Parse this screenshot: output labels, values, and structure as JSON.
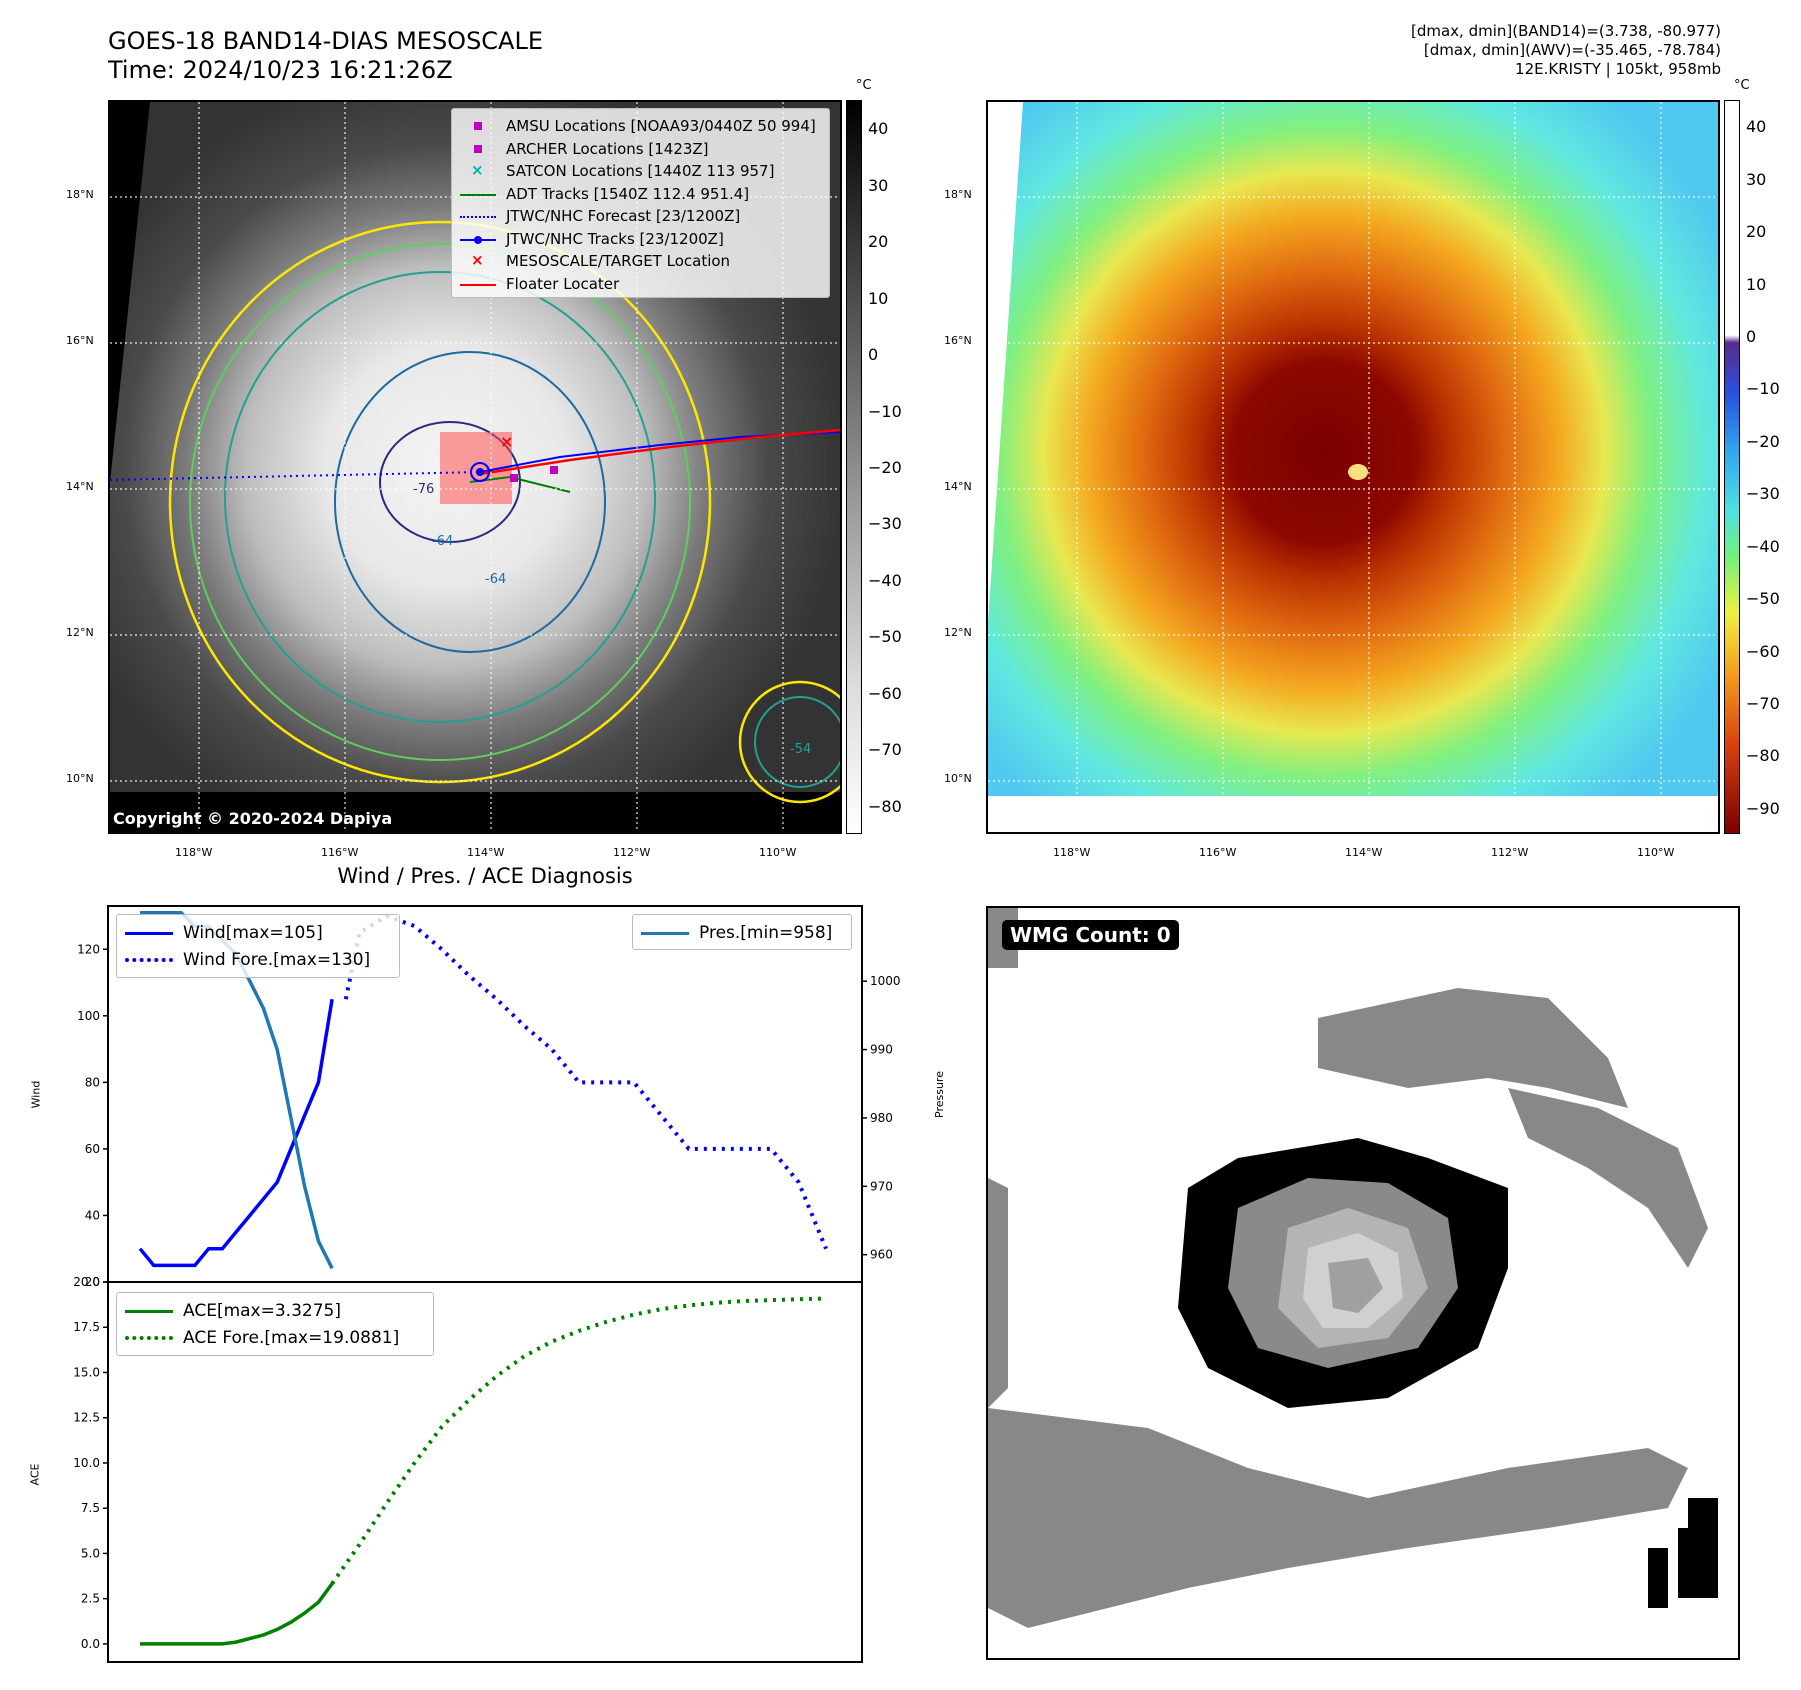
{
  "header": {
    "title_line1": "GOES-18 BAND14-DIAS MESOSCALE",
    "title_line2": "Time: 2024/10/23 16:21:26Z",
    "info_line1": "[dmax, dmin](BAND14)=(3.738, -80.977)",
    "info_line2": "[dmax, dmin](AWV)=(-35.465, -78.784)",
    "info_line3": "12E.KRISTY | 105kt, 958mb"
  },
  "map_ir": {
    "lat_labels": [
      "18°N",
      "16°N",
      "14°N",
      "12°N",
      "10°N"
    ],
    "lon_labels": [
      "118°W",
      "116°W",
      "114°W",
      "112°W",
      "110°W"
    ],
    "contour_labels": [
      "-76",
      "-64",
      "-64",
      "-54"
    ],
    "copyright": "Copyright © 2020-2024 Dapiya",
    "colorbar_unit": "°C",
    "colorbar_ticks": [
      "40",
      "30",
      "20",
      "10",
      "0",
      "−10",
      "−20",
      "−30",
      "−40",
      "−50",
      "−60",
      "−70",
      "−80"
    ],
    "legend": [
      {
        "label": "AMSU Locations [NOAA93/0440Z 50 994]",
        "key": "square",
        "color": "#c000c0"
      },
      {
        "label": "ARCHER Locations [1423Z]",
        "key": "square",
        "color": "#c000c0"
      },
      {
        "label": "SATCON Locations [1440Z 113 957]",
        "key": "x",
        "color": "#00b0b0"
      },
      {
        "label": "ADT Tracks [1540Z 112.4 951.4]",
        "key": "line",
        "color": "#008000"
      },
      {
        "label": "JTWC/NHC Forecast [23/1200Z]",
        "key": "dotted",
        "color": "#0000ff"
      },
      {
        "label": "JTWC/NHC Tracks [23/1200Z]",
        "key": "line-dot",
        "color": "#0000ff"
      },
      {
        "label": "MESOSCALE/TARGET Location",
        "key": "x",
        "color": "#ff0000"
      },
      {
        "label": "Floater Locater",
        "key": "line",
        "color": "#ff0000"
      }
    ]
  },
  "map_awv": {
    "lat_labels": [
      "18°N",
      "16°N",
      "14°N",
      "12°N",
      "10°N"
    ],
    "lon_labels": [
      "118°W",
      "116°W",
      "114°W",
      "112°W",
      "110°W"
    ],
    "colorbar_unit": "°C",
    "colorbar_ticks": [
      "40",
      "30",
      "20",
      "10",
      "0",
      "−10",
      "−20",
      "−30",
      "−40",
      "−50",
      "−60",
      "−70",
      "−80",
      "−90"
    ]
  },
  "diagnosis": {
    "title": "Wind / Pres. / ACE Diagnosis",
    "wind_ylabel": "Wind",
    "pres_ylabel": "Pressure",
    "ace_ylabel": "ACE",
    "wind_legend": [
      "Wind[max=105]",
      "Wind Fore.[max=130]"
    ],
    "pres_legend": [
      "Pres.[min=958]"
    ],
    "ace_legend": [
      "ACE[max=3.3275]",
      "ACE Fore.[max=19.0881]"
    ]
  },
  "wmg": {
    "badge": "WMG Count: 0"
  },
  "chart_data": [
    {
      "type": "line",
      "name": "wind",
      "x": [
        0,
        1,
        2,
        3,
        4,
        5,
        6,
        7,
        8,
        9,
        10,
        11,
        12,
        13,
        14,
        15
      ],
      "series": [
        {
          "name": "Wind[max=105]",
          "x": [
            0,
            1,
            2,
            3,
            4,
            5,
            6,
            7,
            8,
            9,
            10,
            11,
            12,
            13,
            14,
            15
          ],
          "values": [
            30,
            25,
            25,
            25,
            25,
            30,
            30,
            35,
            40,
            45,
            50,
            60,
            70,
            80,
            105,
            null
          ]
        },
        {
          "name": "Wind Fore.[max=130]",
          "x": [
            15,
            16,
            18,
            20,
            22,
            24,
            26,
            28,
            30,
            32,
            34,
            36,
            38,
            40,
            42,
            44,
            46,
            48,
            50
          ],
          "values": [
            105,
            125,
            130,
            127,
            120,
            112,
            105,
            97,
            90,
            80,
            80,
            80,
            70,
            60,
            60,
            60,
            60,
            50,
            30
          ]
        }
      ],
      "ylim": [
        20,
        133
      ],
      "yticks": [
        20,
        40,
        60,
        80,
        100,
        120
      ],
      "ylabel": "Wind"
    },
    {
      "type": "line",
      "name": "pressure",
      "series": [
        {
          "name": "Pres.[min=958]",
          "x": [
            0,
            1,
            2,
            3,
            4,
            5,
            6,
            7,
            8,
            9,
            10,
            11,
            12,
            13,
            14
          ],
          "values": [
            1010,
            1010,
            1010,
            1010,
            1008,
            1008,
            1006,
            1004,
            1000,
            996,
            990,
            980,
            970,
            962,
            958
          ]
        }
      ],
      "ylim": [
        956,
        1011
      ],
      "yticks": [
        960,
        970,
        980,
        990,
        1000
      ],
      "ylabel": "Pressure"
    },
    {
      "type": "line",
      "name": "ace",
      "series": [
        {
          "name": "ACE[max=3.3275]",
          "x": [
            0,
            1,
            2,
            3,
            4,
            5,
            6,
            7,
            8,
            9,
            10,
            11,
            12,
            13,
            14
          ],
          "values": [
            0,
            0,
            0,
            0,
            0,
            0,
            0,
            0.1,
            0.3,
            0.5,
            0.8,
            1.2,
            1.7,
            2.3,
            3.3275
          ]
        },
        {
          "name": "ACE Fore.[max=19.0881]",
          "x": [
            14,
            16,
            18,
            20,
            22,
            24,
            26,
            28,
            30,
            32,
            34,
            36,
            38,
            40,
            42,
            44,
            46,
            48,
            50
          ],
          "values": [
            3.3275,
            5.5,
            7.8,
            10.0,
            12.0,
            13.5,
            14.8,
            15.9,
            16.7,
            17.3,
            17.8,
            18.2,
            18.5,
            18.7,
            18.85,
            18.95,
            19.0,
            19.05,
            19.0881
          ]
        }
      ],
      "ylim": [
        -1,
        20
      ],
      "yticks": [
        0.0,
        2.5,
        5.0,
        7.5,
        10.0,
        12.5,
        15.0,
        17.5,
        20.0
      ],
      "ytick_labels": [
        "0.0",
        "2.5",
        "5.0",
        "7.5",
        "10.0",
        "12.5",
        "15.0",
        "17.5",
        "20.0"
      ],
      "ylabel": "ACE"
    }
  ]
}
